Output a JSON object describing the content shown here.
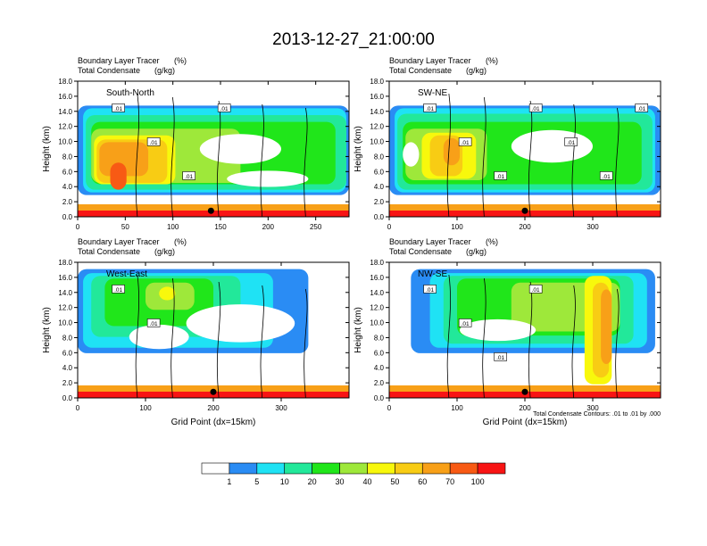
{
  "title": "2013-12-27_21:00:00",
  "colors": {
    "fill": [
      "#ffffff",
      "#2a8cf4",
      "#1fe2f4",
      "#22e89a",
      "#20e61a",
      "#9ee83a",
      "#f8f80c",
      "#f8cc14",
      "#f8a018",
      "#f85a14",
      "#f81414"
    ],
    "contour": "#000000",
    "marker": "#000000"
  },
  "chart_data": [
    {
      "type": "heatmap",
      "label": "South-North",
      "title_left_line1": "Boundary Layer Tracer",
      "title_right_line1": "(%)",
      "title_left_line2": "Total Condensate",
      "title_right_line2": "(g/kg)",
      "ylabel": "Height (km)",
      "xlabel": "",
      "xlim": [
        0,
        285
      ],
      "ylim": [
        0,
        18
      ],
      "xticks": [
        0,
        50,
        100,
        150,
        200,
        250
      ],
      "yticks": [
        0,
        2,
        4,
        6,
        8,
        10,
        12,
        14,
        16,
        18
      ],
      "ytick_labels": [
        "0.0",
        "2.0",
        "4.0",
        "6.0",
        "8.0",
        "10.0",
        "12.0",
        "14.0",
        "16.0",
        "18.0"
      ],
      "marker_x": 140,
      "contour_labels": [
        ".01",
        ".01",
        ".01",
        ".01"
      ]
    },
    {
      "type": "heatmap",
      "label": "SW-NE",
      "title_left_line1": "Boundary Layer Tracer",
      "title_right_line1": "(%)",
      "title_left_line2": "Total Condensate",
      "title_right_line2": "(g/kg)",
      "ylabel": "Height (km)",
      "xlabel": "",
      "xlim": [
        0,
        400
      ],
      "ylim": [
        0,
        18
      ],
      "xticks": [
        0,
        100,
        200,
        300
      ],
      "yticks": [
        0,
        2,
        4,
        6,
        8,
        10,
        12,
        14,
        16,
        18
      ],
      "ytick_labels": [
        "0.0",
        "2.0",
        "4.0",
        "6.0",
        "8.0",
        "10.0",
        "12.0",
        "14.0",
        "16.0",
        "18.0"
      ],
      "marker_x": 200,
      "contour_labels": [
        ".01",
        ".01",
        ".01",
        ".01",
        ".01",
        ".01",
        ".01"
      ]
    },
    {
      "type": "heatmap",
      "label": "West-East",
      "title_left_line1": "Boundary Layer Tracer",
      "title_right_line1": "(%)",
      "title_left_line2": "Total Condensate",
      "title_right_line2": "(g/kg)",
      "ylabel": "Height (km)",
      "xlabel": "Grid Point (dx=15km)",
      "xlim": [
        0,
        400
      ],
      "ylim": [
        0,
        18
      ],
      "xticks": [
        0,
        100,
        200,
        300
      ],
      "yticks": [
        0,
        2,
        4,
        6,
        8,
        10,
        12,
        14,
        16,
        18
      ],
      "ytick_labels": [
        "0.0",
        "2.0",
        "4.0",
        "6.0",
        "8.0",
        "10.0",
        "12.0",
        "14.0",
        "16.0",
        "18.0"
      ],
      "marker_x": 200,
      "contour_labels": [
        ".01",
        ".01"
      ]
    },
    {
      "type": "heatmap",
      "label": "NW-SE",
      "title_left_line1": "Boundary Layer Tracer",
      "title_right_line1": "(%)",
      "title_left_line2": "Total Condensate",
      "title_right_line2": "(g/kg)",
      "ylabel": "Height (km)",
      "xlabel": "Grid Point (dx=15km)",
      "xlim": [
        0,
        400
      ],
      "ylim": [
        0,
        18
      ],
      "xticks": [
        0,
        100,
        200,
        300
      ],
      "yticks": [
        0,
        2,
        4,
        6,
        8,
        10,
        12,
        14,
        16,
        18
      ],
      "ytick_labels": [
        "0.0",
        "2.0",
        "4.0",
        "6.0",
        "8.0",
        "10.0",
        "12.0",
        "14.0",
        "16.0",
        "18.0"
      ],
      "marker_x": 200,
      "contour_labels": [
        ".01",
        ".01",
        ".01",
        ".01"
      ],
      "footnote": "Total Condensate Contours: .01 to .01 by .000"
    }
  ],
  "colorbar": {
    "levels": [
      "1",
      "5",
      "10",
      "20",
      "30",
      "40",
      "50",
      "60",
      "70",
      "100"
    ],
    "units": "%"
  }
}
